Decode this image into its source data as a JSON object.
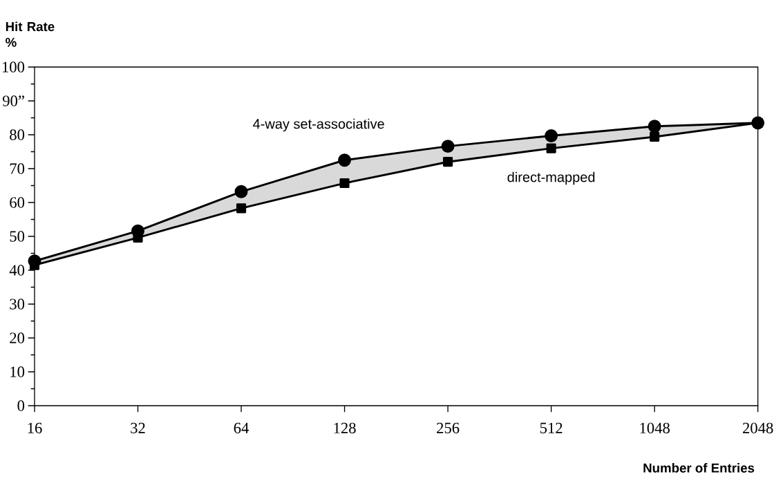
{
  "chart_data": {
    "type": "line",
    "xlabel": "Number of Entries",
    "ylabel": "Hit Rate %",
    "categories": [
      "16",
      "32",
      "64",
      "128",
      "256",
      "512",
      "1048",
      "2048"
    ],
    "series": [
      {
        "name": "4-way set-associative",
        "color": "#000000",
        "marker": "circle",
        "values": [
          42.7,
          51.6,
          63.2,
          72.5,
          76.6,
          79.7,
          82.5,
          83.5
        ]
      },
      {
        "name": "direct-mapped",
        "color": "#000000",
        "marker": "square",
        "values": [
          41.5,
          49.6,
          58.3,
          65.7,
          72.0,
          76.0,
          79.4,
          83.5
        ]
      }
    ],
    "ylim": [
      0,
      100
    ],
    "yticks": [
      0,
      10,
      20,
      30,
      40,
      50,
      60,
      70,
      80,
      {
        "value": 90,
        "label": "90”"
      },
      100
    ],
    "grid": false,
    "legend": false,
    "line_style": "solid"
  }
}
